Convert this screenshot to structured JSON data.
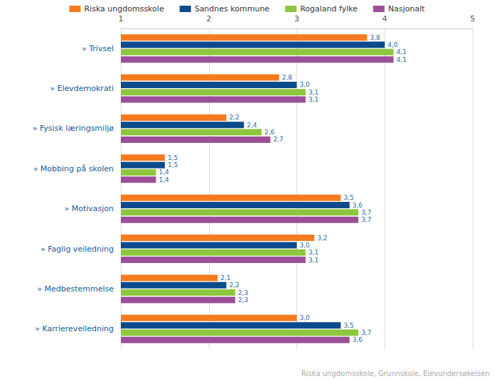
{
  "chart_data": {
    "type": "bar",
    "orientation": "horizontal",
    "subtitle": "Riska ungdomsskole, Grunnskole, Elevundersøkelsen",
    "categories": [
      "» Trivsel",
      "» Elevdemokrati",
      "» Fysisk læringsmiljø",
      "» Mobbing på skolen",
      "» Motivasjon",
      "» Faglig veiledning",
      "» Medbestemmelse",
      "» Karriereveiledning"
    ],
    "series": [
      {
        "name": "Riska ungdomsskole",
        "color": "#f47b20",
        "values": [
          3.8,
          2.8,
          2.2,
          1.5,
          3.5,
          3.2,
          2.1,
          3.0
        ],
        "value_labels": [
          "3,8",
          "2,8",
          "2,2",
          "1,5",
          "3,5",
          "3,2",
          "2,1",
          "3,0"
        ]
      },
      {
        "name": "Sandnes kommune",
        "color": "#0b4a8b",
        "values": [
          4.0,
          3.0,
          2.4,
          1.5,
          3.6,
          3.0,
          2.2,
          3.5
        ],
        "value_labels": [
          "4,0",
          "3,0",
          "2,4",
          "1,5",
          "3,6",
          "3,0",
          "2,2",
          "3,5"
        ]
      },
      {
        "name": "Rogaland fylke",
        "color": "#8dc63f",
        "values": [
          4.1,
          3.1,
          2.6,
          1.4,
          3.7,
          3.1,
          2.3,
          3.7
        ],
        "value_labels": [
          "4,1",
          "3,1",
          "2,6",
          "1,4",
          "3,7",
          "3,1",
          "2,3",
          "3,7"
        ]
      },
      {
        "name": "Nasjonalt",
        "color": "#9c4f98",
        "values": [
          4.1,
          3.1,
          2.7,
          1.4,
          3.7,
          3.1,
          2.3,
          3.6
        ],
        "value_labels": [
          "4,1",
          "3,1",
          "2,7",
          "1,4",
          "3,7",
          "3,1",
          "2,3",
          "3,6"
        ]
      }
    ],
    "xlim": [
      1,
      5
    ],
    "xticks": [
      1,
      2,
      3,
      4,
      5
    ],
    "grid": true,
    "legend": "top",
    "data_labels": true
  }
}
